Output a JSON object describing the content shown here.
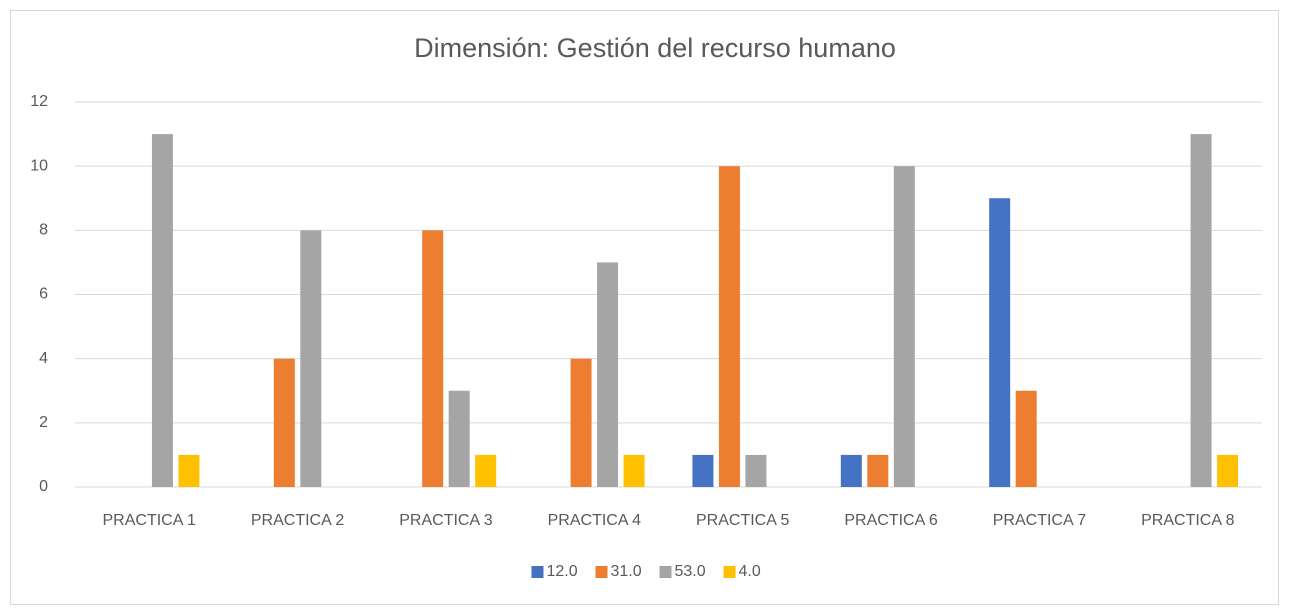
{
  "chart_data": {
    "type": "bar",
    "title": "Dimensión: Gestión del recurso humano",
    "categories": [
      "PRACTICA 1",
      "PRACTICA 2",
      "PRACTICA 3",
      "PRACTICA 4",
      "PRACTICA 5",
      "PRACTICA 6",
      "PRACTICA 7",
      "PRACTICA 8"
    ],
    "series": [
      {
        "name": "12.0",
        "color": "#4472c4",
        "values": [
          0,
          0,
          0,
          0,
          1,
          1,
          9,
          0
        ]
      },
      {
        "name": "31.0",
        "color": "#ed7d31",
        "values": [
          0,
          4,
          8,
          4,
          10,
          1,
          3,
          0
        ]
      },
      {
        "name": "53.0",
        "color": "#a5a5a5",
        "values": [
          11,
          8,
          3,
          7,
          1,
          10,
          0,
          11
        ]
      },
      {
        "name": "4.0",
        "color": "#ffc000",
        "values": [
          1,
          0,
          1,
          1,
          0,
          0,
          0,
          1
        ]
      }
    ],
    "ylim": [
      0,
      12
    ],
    "yticks": [
      0,
      2,
      4,
      6,
      8,
      10,
      12
    ],
    "grid": true,
    "legend": "bottom"
  }
}
